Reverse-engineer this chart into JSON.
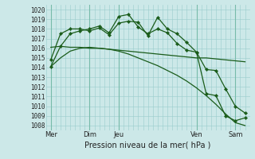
{
  "background_color": "#cce8e8",
  "grid_color": "#99cccc",
  "line_color": "#1a5c1a",
  "title": "Pression niveau de la mer( hPa )",
  "ylabel_vals": [
    1008,
    1009,
    1010,
    1011,
    1012,
    1013,
    1014,
    1015,
    1016,
    1017,
    1018,
    1019,
    1020
  ],
  "ylim": [
    1007.5,
    1020.5
  ],
  "xlim": [
    -0.5,
    20.5
  ],
  "series": [
    {
      "x": [
        0,
        1,
        2,
        3,
        4,
        5,
        6,
        7,
        8,
        9,
        10,
        11,
        12,
        13,
        14,
        15,
        16,
        17,
        18,
        19,
        20
      ],
      "y": [
        1016.1,
        1016.2,
        1016.1,
        1016.1,
        1016.0,
        1016.0,
        1015.9,
        1015.8,
        1015.7,
        1015.6,
        1015.5,
        1015.4,
        1015.3,
        1015.2,
        1015.1,
        1015.0,
        1015.0,
        1014.9,
        1014.8,
        1014.7,
        1014.6
      ],
      "marker": false
    },
    {
      "x": [
        0,
        1,
        2,
        3,
        4,
        5,
        6,
        7,
        8,
        9,
        10,
        11,
        12,
        13,
        14,
        15,
        16,
        17,
        18,
        19,
        20
      ],
      "y": [
        1014.1,
        1015.0,
        1015.7,
        1016.0,
        1016.1,
        1016.0,
        1015.9,
        1015.7,
        1015.4,
        1015.0,
        1014.6,
        1014.2,
        1013.7,
        1013.2,
        1012.6,
        1011.9,
        1011.1,
        1010.2,
        1009.2,
        1008.3,
        1008.0
      ],
      "marker": false
    },
    {
      "x": [
        0,
        1,
        2,
        3,
        4,
        5,
        6,
        7,
        8,
        9,
        10,
        11,
        12,
        13,
        14,
        15,
        16,
        17,
        18,
        19,
        20
      ],
      "y": [
        1014.8,
        1017.5,
        1018.0,
        1018.0,
        1017.8,
        1018.1,
        1017.4,
        1018.6,
        1018.8,
        1018.7,
        1017.3,
        1019.2,
        1018.0,
        1017.5,
        1016.6,
        1015.6,
        1013.8,
        1013.7,
        1011.8,
        1010.0,
        1009.3
      ],
      "marker": true
    },
    {
      "x": [
        0,
        1,
        2,
        3,
        4,
        5,
        6,
        7,
        8,
        9,
        10,
        11,
        12,
        13,
        14,
        15,
        16,
        17,
        18,
        19,
        20
      ],
      "y": [
        1014.1,
        1016.2,
        1017.5,
        1017.8,
        1018.0,
        1018.3,
        1017.6,
        1019.3,
        1019.5,
        1018.2,
        1017.5,
        1018.0,
        1017.6,
        1016.5,
        1015.8,
        1015.6,
        1011.3,
        1011.1,
        1009.0,
        1008.5,
        1008.8
      ],
      "marker": true
    }
  ],
  "vline_positions": [
    0,
    4,
    7,
    15,
    19
  ],
  "xtick_positions": [
    0,
    4,
    7,
    15,
    19
  ],
  "xtick_labels": [
    "Mer",
    "Dim",
    "Jeu",
    "Ven",
    "Sam"
  ],
  "title_fontsize": 7,
  "tick_fontsize": 5.5,
  "figsize": [
    3.2,
    2.0
  ],
  "dpi": 100
}
